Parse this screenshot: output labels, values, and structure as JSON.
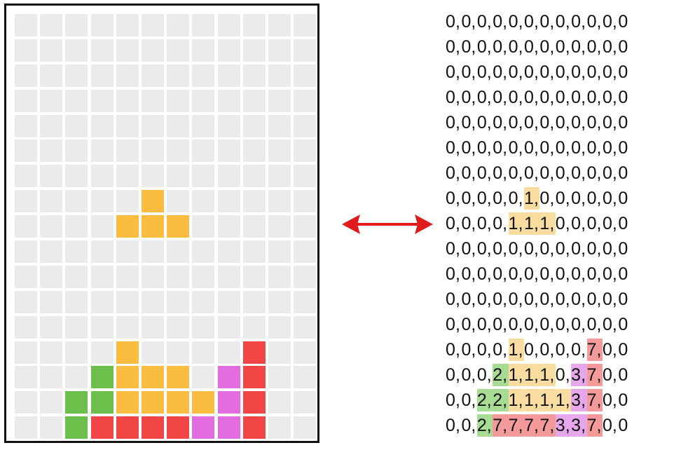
{
  "colors": {
    "0": "#ebebeb",
    "1": "#fbbd3f",
    "2": "#6dbf4b",
    "3": "#e36ce0",
    "7": "#f24646"
  },
  "highlight_colors": {
    "1": "#f8dca0",
    "2": "#a8dc94",
    "3": "#e6a8ea",
    "7": "#f59a9a"
  },
  "arrow": {
    "icon": "double-headed-arrow-icon",
    "color": "#e01b1b"
  },
  "grid": [
    [
      0,
      0,
      0,
      0,
      0,
      0,
      0,
      0,
      0,
      0,
      0,
      0
    ],
    [
      0,
      0,
      0,
      0,
      0,
      0,
      0,
      0,
      0,
      0,
      0,
      0
    ],
    [
      0,
      0,
      0,
      0,
      0,
      0,
      0,
      0,
      0,
      0,
      0,
      0
    ],
    [
      0,
      0,
      0,
      0,
      0,
      0,
      0,
      0,
      0,
      0,
      0,
      0
    ],
    [
      0,
      0,
      0,
      0,
      0,
      0,
      0,
      0,
      0,
      0,
      0,
      0
    ],
    [
      0,
      0,
      0,
      0,
      0,
      0,
      0,
      0,
      0,
      0,
      0,
      0
    ],
    [
      0,
      0,
      0,
      0,
      0,
      0,
      0,
      0,
      0,
      0,
      0,
      0
    ],
    [
      0,
      0,
      0,
      0,
      0,
      1,
      0,
      0,
      0,
      0,
      0,
      0
    ],
    [
      0,
      0,
      0,
      0,
      1,
      1,
      1,
      0,
      0,
      0,
      0,
      0
    ],
    [
      0,
      0,
      0,
      0,
      0,
      0,
      0,
      0,
      0,
      0,
      0,
      0
    ],
    [
      0,
      0,
      0,
      0,
      0,
      0,
      0,
      0,
      0,
      0,
      0,
      0
    ],
    [
      0,
      0,
      0,
      0,
      0,
      0,
      0,
      0,
      0,
      0,
      0,
      0
    ],
    [
      0,
      0,
      0,
      0,
      0,
      0,
      0,
      0,
      0,
      0,
      0,
      0
    ],
    [
      0,
      0,
      0,
      0,
      1,
      0,
      0,
      0,
      0,
      7,
      0,
      0
    ],
    [
      0,
      0,
      0,
      2,
      1,
      1,
      1,
      0,
      3,
      7,
      0,
      0
    ],
    [
      0,
      0,
      2,
      2,
      1,
      1,
      1,
      1,
      3,
      7,
      0,
      0
    ],
    [
      0,
      0,
      2,
      7,
      7,
      7,
      7,
      3,
      3,
      7,
      0,
      0
    ]
  ]
}
